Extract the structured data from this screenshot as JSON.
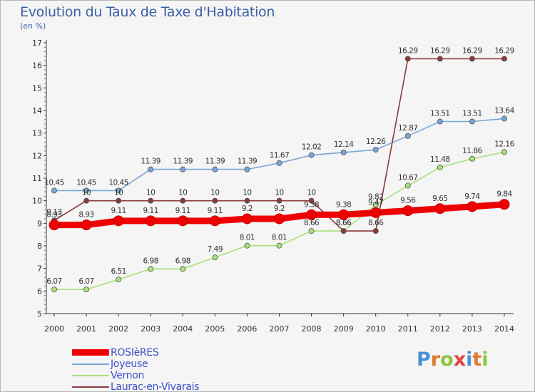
{
  "header": {
    "title": "Evolution du Taux de Taxe d'Habitation",
    "unit": "(en %)"
  },
  "chart_data": {
    "type": "line",
    "title": "Evolution du Taux de Taxe d'Habitation",
    "ylabel": "(en %)",
    "xlabel": "",
    "ylim": [
      5,
      17
    ],
    "categories": [
      "2000",
      "2001",
      "2002",
      "2003",
      "2004",
      "2005",
      "2006",
      "2007",
      "2008",
      "2009",
      "2010",
      "2011",
      "2012",
      "2013",
      "2014"
    ],
    "yticks": [
      5,
      6,
      7,
      8,
      9,
      10,
      11,
      12,
      13,
      14,
      15,
      16,
      17
    ],
    "grid": false,
    "legend_position": "bottom-left",
    "series": [
      {
        "name": "ROSIèRES",
        "color": "#ee0000",
        "values": [
          8.93,
          8.93,
          9.11,
          9.11,
          9.11,
          9.11,
          9.2,
          9.2,
          9.38,
          9.38,
          9.47,
          9.56,
          9.65,
          9.74,
          9.84
        ],
        "labels": [
          "8.93",
          "8.93",
          "9.11",
          "9.11",
          "9.11",
          "9.11",
          "9.2",
          "9.2",
          "9.38",
          "9.38",
          "9.47",
          "9.56",
          "9.65",
          "9.74",
          "9.84"
        ]
      },
      {
        "name": "Joyeuse",
        "color": "#7aa6d6",
        "values": [
          10.45,
          10.45,
          10.45,
          11.39,
          11.39,
          11.39,
          11.39,
          11.67,
          12.02,
          12.14,
          12.26,
          12.87,
          13.51,
          13.51,
          13.64
        ],
        "labels": [
          "10.45",
          "10.45",
          "10.45",
          "11.39",
          "11.39",
          "11.39",
          "11.39",
          "11.67",
          "12.02",
          "12.14",
          "12.26",
          "12.87",
          "13.51",
          "13.51",
          "13.64"
        ]
      },
      {
        "name": "Vernon",
        "color": "#a8e07a",
        "values": [
          6.07,
          6.07,
          6.51,
          6.98,
          6.98,
          7.49,
          8.01,
          8.01,
          8.66,
          8.66,
          9.82,
          10.67,
          11.48,
          11.86,
          12.16
        ],
        "labels": [
          "6.07",
          "6.07",
          "6.51",
          "6.98",
          "6.98",
          "7.49",
          "8.01",
          "8.01",
          "8.66",
          "8.66",
          "9.82",
          "10.67",
          "11.48",
          "11.86",
          "12.16"
        ]
      },
      {
        "name": "Laurac-en-Vivarais",
        "color": "#8b3a3a",
        "values": [
          9.13,
          10,
          10,
          10,
          10,
          10,
          10,
          10,
          10,
          8.66,
          8.66,
          16.29,
          16.29,
          16.29,
          16.29
        ],
        "labels": [
          "9.13",
          "10",
          "10",
          "10",
          "10",
          "10",
          "10",
          "10",
          "10",
          "8.66",
          "8.66",
          "16.29",
          "16.29",
          "16.29",
          "16.29"
        ]
      }
    ]
  },
  "logo": {
    "text": "Proxiti",
    "letter_colors": [
      "#4a8fd6",
      "#e07a2e",
      "#8cc63f",
      "#e04040",
      "#4a8fd6",
      "#e07a2e",
      "#8cc63f"
    ]
  }
}
